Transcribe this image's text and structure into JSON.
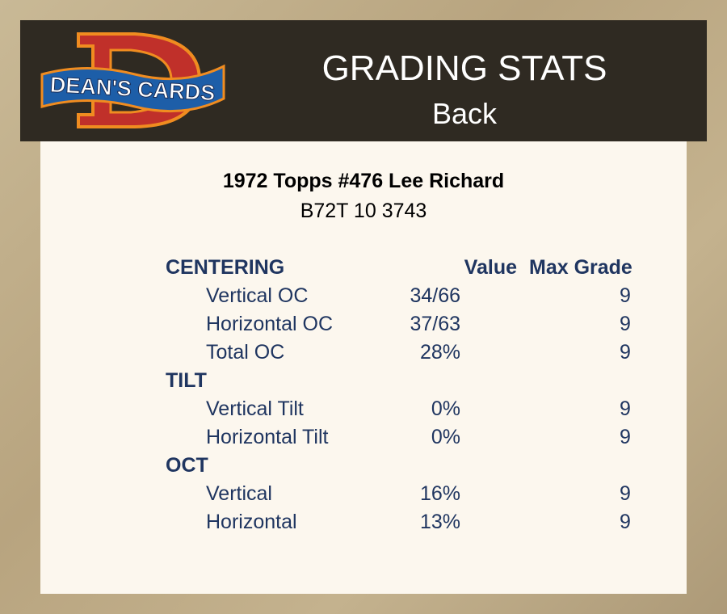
{
  "header": {
    "logo_text": "DEAN'S CARDS",
    "title": "GRADING STATS",
    "subtitle": "Back"
  },
  "card": {
    "title": "1972 Topps #476 Lee Richard",
    "id": "B72T 10 3743"
  },
  "columns": {
    "value": "Value",
    "max_grade": "Max Grade"
  },
  "rows": [
    {
      "type": "head",
      "label": "CENTERING"
    },
    {
      "type": "sub",
      "label": "Vertical OC",
      "value": "34/66",
      "max": "9"
    },
    {
      "type": "sub",
      "label": "Horizontal OC",
      "value": "37/63",
      "max": "9"
    },
    {
      "type": "sub",
      "label": "Total OC",
      "value": "28%",
      "max": "9"
    },
    {
      "type": "head",
      "label": "TILT"
    },
    {
      "type": "sub",
      "label": "Vertical Tilt",
      "value": "0%",
      "max": "9"
    },
    {
      "type": "sub",
      "label": "Horizontal Tilt",
      "value": "0%",
      "max": "9"
    },
    {
      "type": "head",
      "label": "OCT"
    },
    {
      "type": "sub",
      "label": "Vertical",
      "value": "16%",
      "max": "9"
    },
    {
      "type": "sub",
      "label": "Horizontal",
      "value": "13%",
      "max": "9"
    }
  ],
  "colors": {
    "text": "#1f3560",
    "header_bg": "#2f2a22",
    "panel_bg": "#fcf7ee"
  }
}
